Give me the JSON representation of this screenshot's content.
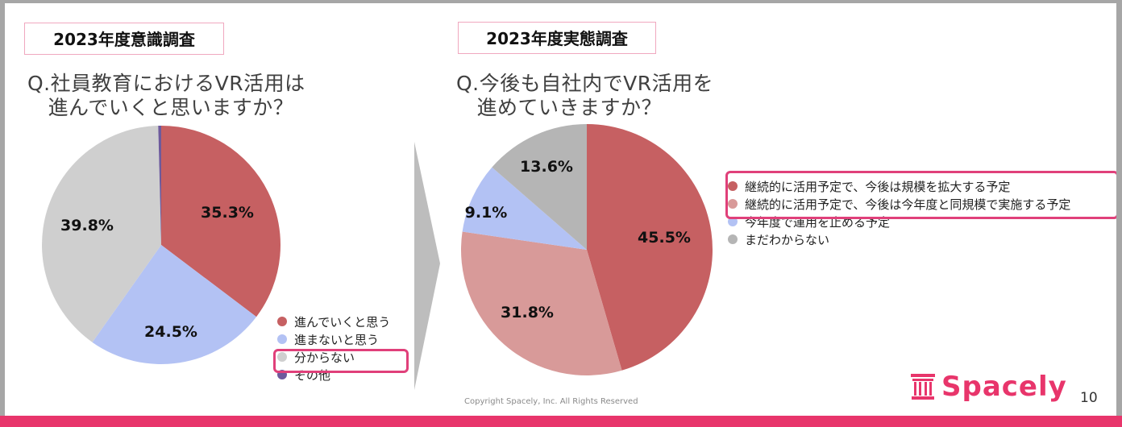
{
  "slide": {
    "copyright": "Copyright Spacely, Inc. All Rights Reserved",
    "logo_text": "Spacely",
    "page_number": "10",
    "accent_color": "#e8356b"
  },
  "left_panel": {
    "title": "2023年度意識調査",
    "question": "Q.社員教育におけるVR活用は\n　進んでいくと思いますか？"
  },
  "right_panel": {
    "title": "2023年度実態調査",
    "question": "Q.今後も自社内でVR活用を\n　進めていきますか？"
  },
  "chart_data": [
    {
      "type": "pie",
      "title": "2023年度意識調査",
      "labels": [
        "進んでいくと思う",
        "進まないと思う",
        "分からない",
        "その他"
      ],
      "values": [
        35.3,
        24.5,
        39.8,
        0.4
      ],
      "value_labels": [
        "35.3%",
        "24.5%",
        "39.8%",
        ""
      ],
      "colors": [
        "#c66062",
        "#b3c2f4",
        "#cfcfcf",
        "#6d5a9c"
      ],
      "highlighted_legend_item": "分からない",
      "legend": "bottom-right"
    },
    {
      "type": "pie",
      "title": "2023年度実態調査",
      "labels": [
        "継続的に活用予定で、今後は規模を拡大する予定",
        "継続的に活用予定で、今後は今年度と同規模で実施する予定",
        "今年度で運用を止める予定",
        "まだわからない"
      ],
      "values": [
        45.5,
        31.8,
        9.1,
        13.6
      ],
      "value_labels": [
        "45.5%",
        "31.8%",
        "9.1%",
        "13.6%"
      ],
      "colors": [
        "#c66062",
        "#d89a99",
        "#b3c2f4",
        "#b5b5b5"
      ],
      "highlighted_legend_items": [
        "継続的に活用予定で、今後は規模を拡大する予定",
        "継続的に活用予定で、今後は今年度と同規模で実施する予定"
      ],
      "legend": "right"
    }
  ]
}
